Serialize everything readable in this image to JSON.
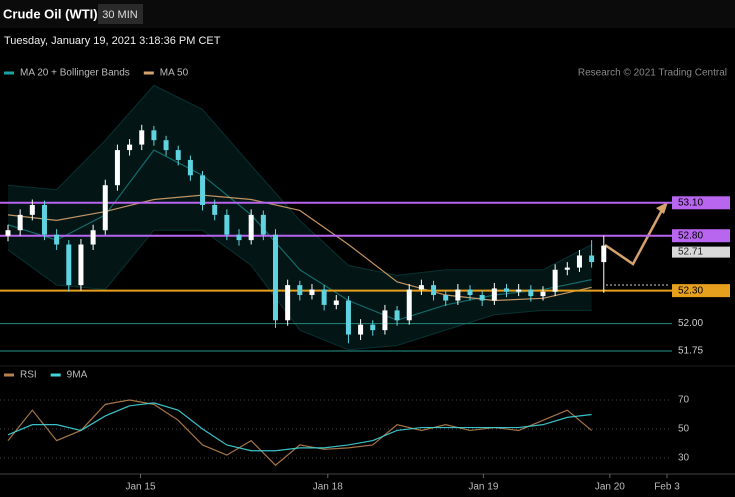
{
  "title": "Crude Oil (WTI)",
  "interval": "30 MIN",
  "timestamp": "Tuesday, January 19, 2021 3:18:36 PM CET",
  "credit": "Research © 2021 Trading Central",
  "chart_data": [
    {
      "type": "candlestick",
      "open": [
        52.8,
        52.85,
        52.99,
        53.08,
        52.81,
        52.72,
        52.35,
        52.72,
        52.85,
        53.26,
        53.58,
        53.63,
        53.76,
        53.67,
        53.58,
        53.49,
        53.35,
        53.08,
        52.99,
        52.81,
        52.76,
        52.99,
        52.81,
        52.03,
        52.35,
        52.26,
        52.31,
        52.17,
        52.21,
        51.9,
        51.99,
        51.94,
        52.12,
        52.03,
        52.31,
        52.35,
        52.26,
        52.21,
        52.31,
        52.26,
        52.21,
        52.32,
        52.29,
        52.31,
        52.25,
        52.29,
        52.49,
        52.51,
        52.62,
        52.56
      ],
      "high": [
        52.9,
        53.04,
        53.13,
        53.12,
        52.86,
        52.76,
        52.77,
        52.9,
        53.31,
        53.63,
        53.68,
        53.81,
        53.8,
        53.71,
        53.62,
        53.53,
        53.39,
        53.13,
        53.04,
        52.86,
        53.04,
        53.03,
        52.86,
        52.4,
        52.39,
        52.36,
        52.35,
        52.26,
        52.25,
        52.04,
        52.03,
        52.17,
        52.16,
        52.36,
        52.4,
        52.39,
        52.3,
        52.36,
        52.35,
        52.3,
        52.37,
        52.36,
        52.36,
        52.35,
        52.34,
        52.54,
        52.56,
        52.67,
        52.76,
        52.8
      ],
      "low": [
        52.75,
        52.8,
        52.94,
        52.76,
        52.67,
        52.29,
        52.3,
        52.67,
        52.81,
        53.21,
        53.53,
        53.58,
        53.62,
        53.53,
        53.44,
        53.3,
        53.03,
        52.94,
        52.76,
        52.71,
        52.72,
        52.76,
        51.96,
        51.98,
        52.21,
        52.22,
        52.12,
        52.13,
        51.82,
        51.85,
        51.89,
        51.9,
        51.98,
        51.99,
        52.26,
        52.21,
        52.16,
        52.17,
        52.21,
        52.16,
        52.17,
        52.24,
        52.25,
        52.2,
        52.21,
        52.25,
        52.44,
        52.47,
        52.51,
        52.28
      ],
      "close": [
        52.85,
        52.99,
        53.08,
        52.81,
        52.72,
        52.35,
        52.72,
        52.85,
        53.26,
        53.58,
        53.63,
        53.76,
        53.67,
        53.58,
        53.49,
        53.35,
        53.08,
        52.99,
        52.81,
        52.76,
        52.99,
        52.81,
        52.03,
        52.35,
        52.26,
        52.31,
        52.17,
        52.21,
        51.9,
        51.99,
        51.94,
        52.12,
        52.03,
        52.31,
        52.35,
        52.26,
        52.21,
        52.31,
        52.26,
        52.21,
        52.32,
        52.29,
        52.31,
        52.25,
        52.29,
        52.49,
        52.51,
        52.62,
        52.56,
        52.71
      ],
      "up_color": "#ffffff",
      "down_color": "#5fd3df",
      "series": [
        {
          "name": "MA 20 + Bollinger Bands",
          "color": "#1ba3a3",
          "x": [
            0,
            4,
            8,
            12,
            16,
            20,
            24,
            28,
            32,
            36,
            40,
            44,
            48
          ],
          "values": [
            52.9,
            52.76,
            52.99,
            53.58,
            53.35,
            52.99,
            52.49,
            52.21,
            52.03,
            52.17,
            52.26,
            52.31,
            52.4
          ],
          "upper": [
            53.26,
            53.22,
            53.67,
            54.17,
            53.95,
            53.44,
            52.94,
            52.53,
            52.44,
            52.49,
            52.49,
            52.49,
            52.72
          ],
          "lower": [
            52.67,
            52.35,
            52.31,
            52.85,
            52.85,
            52.53,
            51.94,
            51.76,
            51.8,
            51.94,
            52.08,
            52.12,
            52.12
          ]
        },
        {
          "name": "MA 50",
          "color": "#d6a26c",
          "x": [
            0,
            4,
            8,
            12,
            16,
            20,
            24,
            28,
            32,
            36,
            40,
            44,
            48
          ],
          "values": [
            52.99,
            52.94,
            53.02,
            53.13,
            53.17,
            53.13,
            53.03,
            52.72,
            52.38,
            52.26,
            52.21,
            52.23,
            52.33
          ]
        }
      ],
      "levels": [
        {
          "value": 53.1,
          "label": "53.10",
          "color": "#b865f0",
          "box": true
        },
        {
          "value": 52.8,
          "label": "52.80",
          "color": "#b865f0",
          "box": true
        },
        {
          "value": 52.3,
          "label": "52.30",
          "color": "#e6a01e",
          "box": true
        },
        {
          "value": 52,
          "label": "52.00",
          "color": "#1f7a72",
          "box": false
        },
        {
          "value": 51.75,
          "label": "51.75",
          "color": "#1f7a72",
          "box": false
        }
      ],
      "last_price": 52.71,
      "xlim": [
        0,
        54.2
      ],
      "ylim": [
        51.65,
        54.2
      ]
    },
    {
      "type": "line",
      "series": [
        {
          "name": "RSI",
          "color": "#b5814d",
          "x": [
            0,
            2,
            4,
            6,
            8,
            10,
            12,
            14,
            16,
            18,
            20,
            22,
            24,
            26,
            28,
            30,
            32,
            34,
            36,
            38,
            40,
            42,
            44,
            46,
            48
          ],
          "values": [
            42,
            63,
            42,
            49,
            67,
            70,
            67,
            56,
            39,
            32,
            42,
            25,
            39,
            36,
            37,
            39,
            53,
            49,
            53,
            49,
            51,
            49,
            56,
            63,
            49
          ]
        },
        {
          "name": "9MA",
          "color": "#3fd6dc",
          "x": [
            0,
            2,
            4,
            6,
            8,
            10,
            12,
            14,
            16,
            18,
            20,
            22,
            24,
            26,
            28,
            30,
            32,
            34,
            36,
            38,
            40,
            42,
            44,
            46,
            48
          ],
          "values": [
            46,
            53,
            53,
            49,
            59,
            66,
            68,
            63,
            50,
            39,
            35,
            35,
            37,
            37,
            39,
            42,
            49,
            51,
            51,
            51,
            51,
            51,
            53,
            58,
            60
          ]
        }
      ],
      "xlim": [
        0,
        54.2
      ],
      "ylim": [
        22,
        77
      ],
      "yticks": [
        70,
        50,
        30
      ],
      "xticks": [
        {
          "value": 10.9,
          "label": "Jan 15"
        },
        {
          "value": 26.3,
          "label": "Jan 18"
        },
        {
          "value": 39.1,
          "label": "Jan 19"
        },
        {
          "value": 49.5,
          "label": "Jan 20"
        },
        {
          "value": 54.2,
          "label": "Feb 3"
        }
      ]
    }
  ]
}
